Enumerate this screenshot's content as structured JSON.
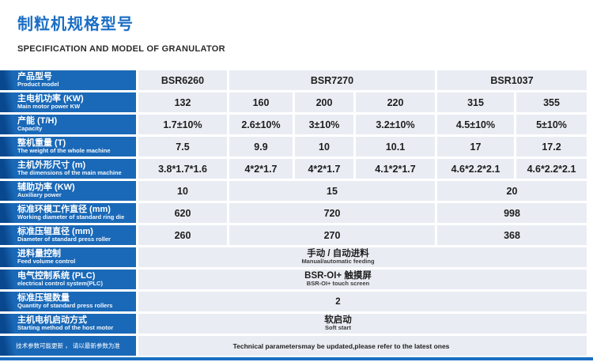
{
  "page": {
    "title": "制粒机规格型号",
    "subtitle": "SPECIFICATION AND MODEL OF GRANULATOR"
  },
  "colors": {
    "accent_blue": "#1b6ec5",
    "label_blue_dark": "#09488e",
    "label_blue": "#1a69b8",
    "cell_background": "#e9edf3",
    "value_text": "#1d1d1d",
    "bottom_bar_blue": "#1a6fc0"
  },
  "table": {
    "rows": [
      {
        "label_zh": "产品型号",
        "label_en": "Product model",
        "values": [
          "BSR6260",
          "BSR7270",
          "BSR1037"
        ]
      },
      {
        "label_zh": "主电机功率 (KW)",
        "label_en": "Main motor power KW",
        "values": [
          "132",
          "160",
          "200",
          "220",
          "315",
          "355"
        ]
      },
      {
        "label_zh": "产能 (T/H)",
        "label_en": "Capacity",
        "values": [
          "1.7±10%",
          "2.6±10%",
          "3±10%",
          "3.2±10%",
          "4.5±10%",
          "5±10%"
        ]
      },
      {
        "label_zh": "整机重量 (T)",
        "label_en": "The weight of the whole machine",
        "values": [
          "7.5",
          "9.9",
          "10",
          "10.1",
          "17",
          "17.2"
        ]
      },
      {
        "label_zh": "主机外形尺寸 (m)",
        "label_en": "The dimensions of the main machine",
        "values": [
          "3.8*1.7*1.6",
          "4*2*1.7",
          "4*2*1.7",
          "4.1*2*1.7",
          "4.6*2.2*2.1",
          "4.6*2.2*2.1"
        ]
      },
      {
        "label_zh": "辅助功率 (KW)",
        "label_en": "Auxiliary power",
        "values": [
          "10",
          "15",
          "20"
        ]
      },
      {
        "label_zh": "标准环模工作直径 (mm)",
        "label_en": "Working diameter of standard ring die",
        "values": [
          "620",
          "720",
          "998"
        ]
      },
      {
        "label_zh": "标准压辊直径 (mm)",
        "label_en": "Diameter of standard press roller",
        "values": [
          "260",
          "270",
          "368"
        ]
      },
      {
        "label_zh": "进料量控制",
        "label_en": "Feed volume control",
        "value_zh": "手动 / 自动进料",
        "value_en": "Manual/automatic feeding"
      },
      {
        "label_zh": "电气控制系统 (PLC)",
        "label_en": "electrical control system(PLC)",
        "value_zh": "BSR-OI+ 触摸屏",
        "value_en": "BSR-OI+ touch screen"
      },
      {
        "label_zh": "标准压辊数量",
        "label_en": "Quantity of standard press rollers",
        "value_zh": "2"
      },
      {
        "label_zh": "主机电机启动方式",
        "label_en": "Starting method of the host motor",
        "value_zh": "软启动",
        "value_en": "Soft start"
      }
    ],
    "footer": {
      "note_zh": "技术参数可能更新 ， 请以最新参数为准",
      "note_en": "Technical parametersmay be updated,please refer to the latest ones"
    }
  }
}
